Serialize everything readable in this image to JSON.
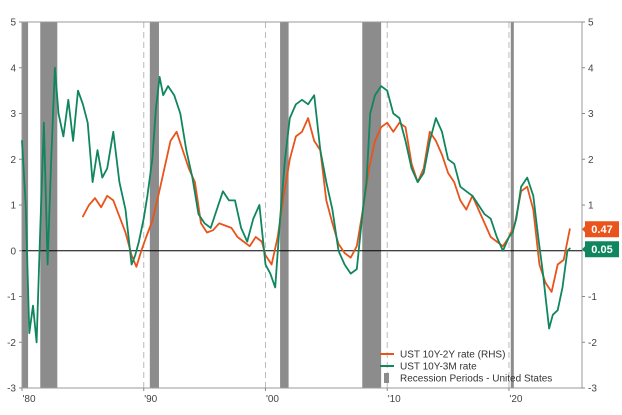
{
  "chart_data": {
    "type": "line",
    "x_range": [
      1980,
      2026
    ],
    "ylim_left": [
      -3,
      5
    ],
    "ylim_right": [
      -3,
      5
    ],
    "y_ticks": [
      -3,
      -2,
      -1,
      0,
      1,
      2,
      3,
      4,
      5
    ],
    "x_tick_values": [
      1980,
      1990,
      2000,
      2010,
      2020
    ],
    "x_tick_labels": [
      "'80",
      "'90",
      "'00",
      "'10",
      "'20"
    ],
    "vertical_gridlines": [
      1990,
      2000,
      2010,
      2020
    ],
    "zero_line": true,
    "recessions": [
      [
        1980.0,
        1980.5
      ],
      [
        1981.5,
        1982.9
      ],
      [
        1990.5,
        1991.25
      ],
      [
        2001.2,
        2001.9
      ],
      [
        2007.95,
        2009.5
      ],
      [
        2020.15,
        2020.4
      ]
    ],
    "series": [
      {
        "name": "UST 10Y-2Y rate (RHS)",
        "color": "#e8541c",
        "axis": "right",
        "x": [
          1985.0,
          1985.5,
          1986.0,
          1986.5,
          1987.0,
          1987.5,
          1988.0,
          1988.5,
          1989.0,
          1989.4,
          1989.8,
          1990.2,
          1990.7,
          1991.2,
          1991.7,
          1992.2,
          1992.7,
          1993.2,
          1993.7,
          1994.2,
          1994.7,
          1995.2,
          1995.7,
          1996.2,
          1996.7,
          1997.2,
          1997.7,
          1998.2,
          1998.7,
          1999.2,
          1999.7,
          2000.0,
          2000.5,
          2001.0,
          2001.5,
          2002.0,
          2002.5,
          2003.0,
          2003.5,
          2004.0,
          2004.5,
          2005.0,
          2005.5,
          2006.0,
          2006.5,
          2007.0,
          2007.5,
          2008.0,
          2008.5,
          2009.0,
          2009.5,
          2010.0,
          2010.5,
          2011.0,
          2011.5,
          2012.0,
          2012.5,
          2013.0,
          2013.5,
          2014.0,
          2014.5,
          2015.0,
          2015.5,
          2016.0,
          2016.5,
          2017.0,
          2017.5,
          2018.0,
          2018.5,
          2019.0,
          2019.5,
          2020.0,
          2020.5,
          2021.0,
          2021.5,
          2022.0,
          2022.5,
          2023.0,
          2023.5,
          2024.0,
          2024.5,
          2025.0
        ],
        "y": [
          0.75,
          1.0,
          1.15,
          0.95,
          1.2,
          1.1,
          0.75,
          0.4,
          -0.1,
          -0.35,
          0.0,
          0.3,
          0.65,
          1.2,
          1.8,
          2.4,
          2.6,
          2.2,
          1.8,
          1.5,
          0.6,
          0.4,
          0.45,
          0.6,
          0.55,
          0.5,
          0.3,
          0.2,
          0.1,
          0.3,
          0.2,
          -0.1,
          -0.3,
          0.3,
          1.2,
          2.0,
          2.5,
          2.6,
          2.9,
          2.4,
          2.2,
          1.1,
          0.6,
          0.15,
          -0.05,
          -0.15,
          0.1,
          0.9,
          1.8,
          2.4,
          2.7,
          2.8,
          2.6,
          2.8,
          2.7,
          1.9,
          1.5,
          1.8,
          2.6,
          2.4,
          2.1,
          1.7,
          1.5,
          1.1,
          0.9,
          1.2,
          0.9,
          0.6,
          0.3,
          0.2,
          0.1,
          0.3,
          0.6,
          1.3,
          1.4,
          0.9,
          -0.3,
          -0.7,
          -0.9,
          -0.3,
          -0.2,
          0.47
        ]
      },
      {
        "name": "UST 10Y-3M rate",
        "color": "#10865f",
        "axis": "left",
        "x": [
          1980.0,
          1980.3,
          1980.6,
          1980.9,
          1981.2,
          1981.5,
          1981.8,
          1982.1,
          1982.4,
          1982.7,
          1983.0,
          1983.4,
          1983.8,
          1984.2,
          1984.6,
          1985.0,
          1985.4,
          1985.8,
          1986.2,
          1986.6,
          1987.0,
          1987.5,
          1988.0,
          1988.5,
          1989.0,
          1989.3,
          1989.6,
          1990.0,
          1990.3,
          1990.7,
          1991.0,
          1991.3,
          1991.6,
          1992.0,
          1992.5,
          1993.0,
          1993.5,
          1994.0,
          1994.5,
          1995.0,
          1995.5,
          1996.0,
          1996.5,
          1997.0,
          1997.5,
          1998.0,
          1998.5,
          1999.0,
          1999.5,
          2000.0,
          2000.4,
          2000.8,
          2001.2,
          2001.6,
          2002.0,
          2002.5,
          2003.0,
          2003.5,
          2004.0,
          2004.5,
          2005.0,
          2005.5,
          2006.0,
          2006.5,
          2007.0,
          2007.5,
          2008.0,
          2008.3,
          2008.6,
          2009.0,
          2009.5,
          2010.0,
          2010.5,
          2011.0,
          2011.5,
          2012.0,
          2012.5,
          2013.0,
          2013.5,
          2014.0,
          2014.5,
          2015.0,
          2015.5,
          2016.0,
          2016.5,
          2017.0,
          2017.5,
          2018.0,
          2018.5,
          2019.0,
          2019.5,
          2020.0,
          2020.3,
          2020.6,
          2021.0,
          2021.5,
          2022.0,
          2022.4,
          2022.8,
          2023.0,
          2023.3,
          2023.6,
          2024.0,
          2024.4,
          2024.8,
          2025.0
        ],
        "y": [
          2.4,
          1.0,
          -1.8,
          -1.2,
          -2.0,
          0.5,
          2.8,
          -0.3,
          2.0,
          4.0,
          3.0,
          2.5,
          3.3,
          2.4,
          3.5,
          3.2,
          2.8,
          1.5,
          2.2,
          1.6,
          1.8,
          2.6,
          1.5,
          0.9,
          -0.3,
          -0.1,
          0.2,
          0.7,
          1.2,
          2.0,
          3.1,
          3.8,
          3.4,
          3.6,
          3.4,
          3.0,
          2.2,
          1.6,
          0.8,
          0.6,
          0.5,
          0.9,
          1.3,
          1.1,
          1.1,
          0.5,
          0.2,
          0.7,
          1.0,
          -0.3,
          -0.5,
          -0.8,
          0.7,
          2.0,
          2.9,
          3.2,
          3.3,
          3.2,
          3.4,
          2.2,
          1.5,
          0.9,
          0.0,
          -0.3,
          -0.5,
          -0.4,
          0.9,
          1.5,
          3.0,
          3.4,
          3.6,
          3.5,
          3.0,
          2.9,
          2.4,
          1.8,
          1.5,
          1.7,
          2.4,
          2.9,
          2.6,
          2.0,
          1.9,
          1.4,
          1.3,
          1.2,
          1.0,
          0.8,
          0.7,
          0.3,
          0.0,
          0.3,
          0.4,
          0.7,
          1.4,
          1.6,
          1.2,
          0.3,
          -0.5,
          -1.0,
          -1.7,
          -1.4,
          -1.3,
          -0.8,
          0.0,
          0.05
        ]
      }
    ],
    "end_labels": [
      {
        "text": "0.47",
        "color": "#e8541c",
        "value": 0.47
      },
      {
        "text": "0.05",
        "color": "#10865f",
        "value": 0.05
      }
    ],
    "legend": {
      "position": "bottom-right",
      "entries": [
        {
          "label": "UST 10Y-2Y rate (RHS)",
          "color": "#e8541c",
          "kind": "line"
        },
        {
          "label": "UST 10Y-3M rate",
          "color": "#10865f",
          "kind": "line"
        },
        {
          "label": "Recession Periods - United States",
          "color": "#8c8c8c",
          "kind": "bar"
        }
      ]
    },
    "colors": {
      "recession": "#8c8c8c",
      "grid": "#bbbbbb",
      "zero_line": "#000000"
    }
  }
}
